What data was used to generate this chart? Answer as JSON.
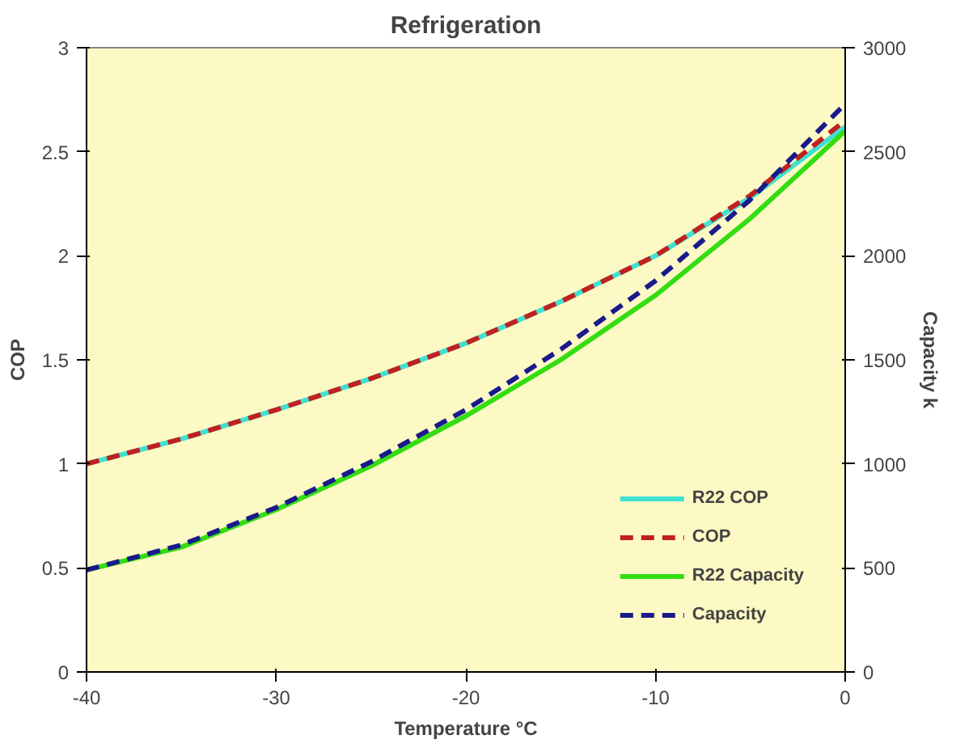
{
  "chart_data": {
    "type": "line",
    "title": "Refrigeration",
    "xlabel": "Temperature °C",
    "ylabel": "COP",
    "y2label": "Capacity k",
    "x": [
      -40,
      -35,
      -30,
      -25,
      -20,
      -15,
      -10,
      -5,
      0
    ],
    "xlim": [
      -40,
      0
    ],
    "xticks": [
      -40,
      -30,
      -20,
      -10,
      0
    ],
    "ylim": [
      0,
      3
    ],
    "yticks": [
      0,
      0.5,
      1,
      1.5,
      2,
      2.5,
      3
    ],
    "y2lim": [
      0,
      3000
    ],
    "y2ticks": [
      0,
      500,
      1000,
      1500,
      2000,
      2500,
      3000
    ],
    "grid": false,
    "legend": "bottom right",
    "marker": "none",
    "series": [
      {
        "name": "R22 COP",
        "color": "#40e0d0",
        "line_style": "solid",
        "values": [
          1.0,
          1.12,
          1.26,
          1.41,
          1.58,
          1.78,
          2.0,
          2.28,
          2.62
        ]
      },
      {
        "name": "COP",
        "color": "#c02020",
        "line_style": "dashed",
        "values": [
          1.0,
          1.12,
          1.26,
          1.41,
          1.58,
          1.78,
          2.0,
          2.29,
          2.65
        ]
      },
      {
        "name": "R22 Capacity",
        "color": "#33dd11",
        "line_style": "solid",
        "axis": "y2",
        "values": [
          490,
          600,
          780,
          990,
          1230,
          1500,
          1810,
          2180,
          2600
        ]
      },
      {
        "name": "Capacity",
        "color": "#1a1a8c",
        "line_style": "dashed",
        "axis": "y2",
        "values": [
          490,
          610,
          790,
          1010,
          1260,
          1550,
          1880,
          2270,
          2730
        ]
      }
    ]
  }
}
